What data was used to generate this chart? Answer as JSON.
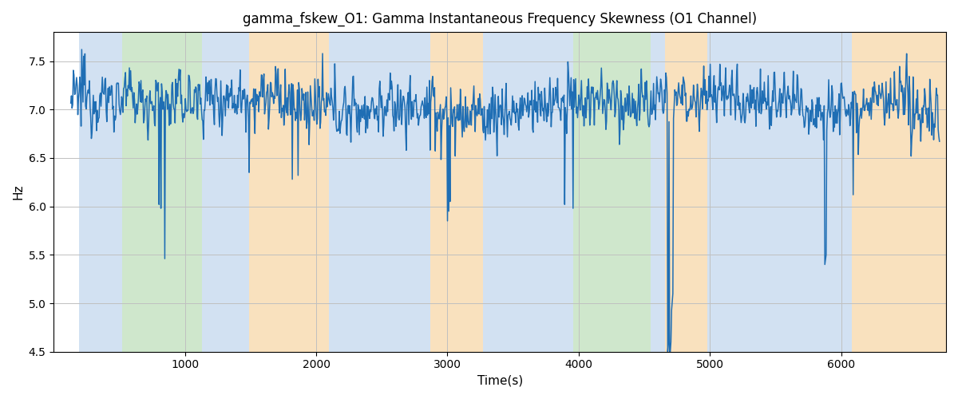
{
  "title": "gamma_fskew_O1: Gamma Instantaneous Frequency Skewness (O1 Channel)",
  "xlabel": "Time(s)",
  "ylabel": "Hz",
  "xlim": [
    0,
    6800
  ],
  "ylim": [
    4.5,
    7.8
  ],
  "line_color": "#1f6eb4",
  "line_width": 1.1,
  "background_regions": [
    {
      "xstart": 195,
      "xend": 520,
      "color": "#aec9e8",
      "alpha": 0.55
    },
    {
      "xstart": 520,
      "xend": 1130,
      "color": "#a8d5a2",
      "alpha": 0.55
    },
    {
      "xstart": 1130,
      "xend": 1490,
      "color": "#aec9e8",
      "alpha": 0.55
    },
    {
      "xstart": 1490,
      "xend": 2100,
      "color": "#f5c98a",
      "alpha": 0.55
    },
    {
      "xstart": 2100,
      "xend": 2870,
      "color": "#aec9e8",
      "alpha": 0.55
    },
    {
      "xstart": 2870,
      "xend": 3270,
      "color": "#f5c98a",
      "alpha": 0.55
    },
    {
      "xstart": 3270,
      "xend": 3870,
      "color": "#aec9e8",
      "alpha": 0.55
    },
    {
      "xstart": 3870,
      "xend": 3960,
      "color": "#aec9e8",
      "alpha": 0.55
    },
    {
      "xstart": 3960,
      "xend": 4550,
      "color": "#a8d5a2",
      "alpha": 0.55
    },
    {
      "xstart": 4550,
      "xend": 4660,
      "color": "#aec9e8",
      "alpha": 0.55
    },
    {
      "xstart": 4660,
      "xend": 4980,
      "color": "#f5c98a",
      "alpha": 0.55
    },
    {
      "xstart": 4980,
      "xend": 5960,
      "color": "#aec9e8",
      "alpha": 0.55
    },
    {
      "xstart": 5960,
      "xend": 6080,
      "color": "#aec9e8",
      "alpha": 0.55
    },
    {
      "xstart": 6080,
      "xend": 6800,
      "color": "#f5c98a",
      "alpha": 0.55
    }
  ],
  "grid_color": "#c0c0c0",
  "yticks": [
    4.5,
    5.0,
    5.5,
    6.0,
    6.5,
    7.0,
    7.5
  ],
  "xticks": [
    1000,
    2000,
    3000,
    4000,
    5000,
    6000
  ],
  "seed": 12345,
  "n_points": 1350,
  "t_start": 130,
  "t_end": 6750,
  "base_freq": 7.05,
  "noise_std": 0.2
}
